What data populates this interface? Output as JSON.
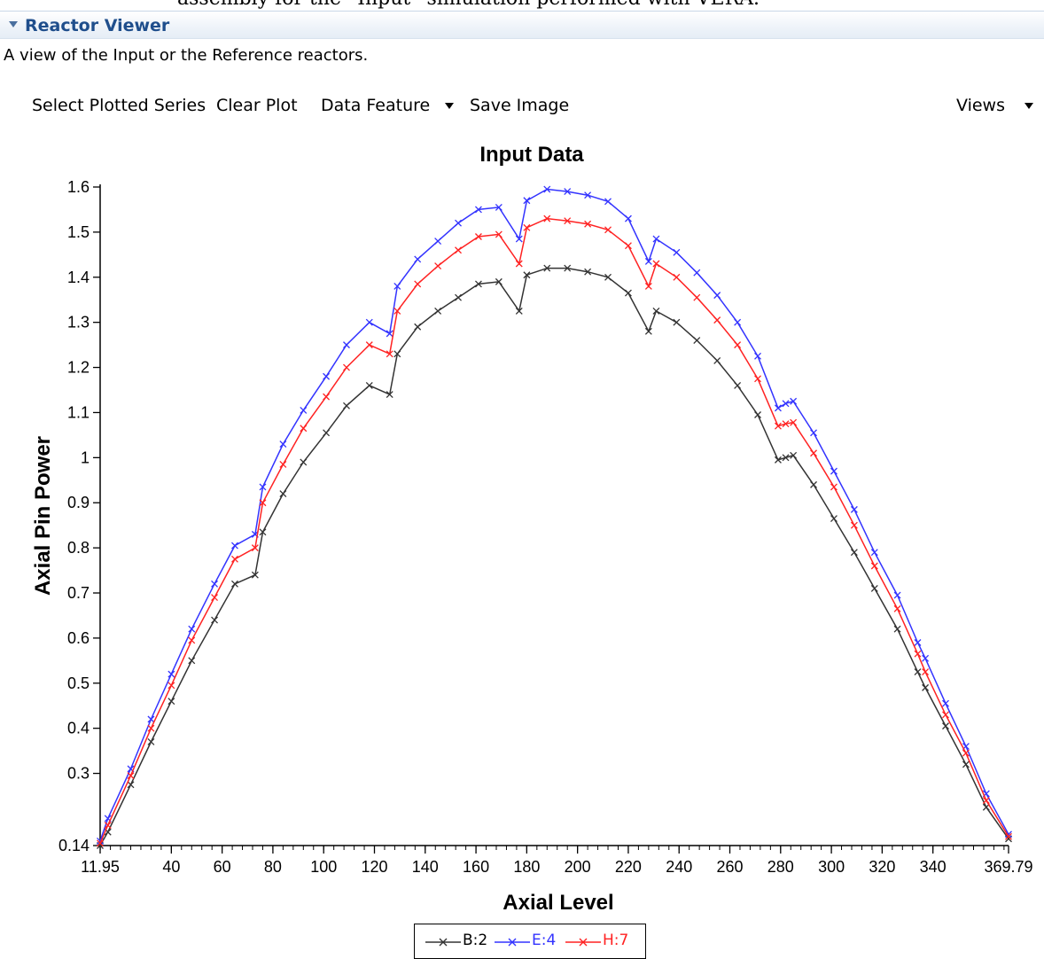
{
  "caption_above": "assembly for the “Input” simulation performed with VERA.",
  "section": {
    "title": "Reactor Viewer",
    "description": "A view of the Input or the Reference reactors."
  },
  "toolbar": {
    "select_series": "Select Plotted Series",
    "clear_plot": "Clear Plot",
    "data_feature": "Data Feature",
    "save_image": "Save Image",
    "views": "Views"
  },
  "colors": {
    "header_text": "#1f4e8c",
    "series_b2": "#333333",
    "series_e4": "#3333ff",
    "series_h7": "#ff2222"
  },
  "chart_data": {
    "type": "line",
    "title": "Input Data",
    "xlabel": "Axial Level",
    "ylabel": "Axial Pin Power",
    "xlim": [
      11.95,
      369.79
    ],
    "ylim": [
      0.14,
      1.6
    ],
    "x_ticks": [
      "11.95",
      "40",
      "60",
      "80",
      "100",
      "120",
      "140",
      "160",
      "180",
      "200",
      "220",
      "240",
      "260",
      "280",
      "300",
      "320",
      "340",
      "369.79"
    ],
    "y_ticks": [
      "0.14",
      "0.3",
      "0.4",
      "0.5",
      "0.6",
      "0.7",
      "0.8",
      "0.9",
      "1",
      "1.1",
      "1.2",
      "1.3",
      "1.4",
      "1.5",
      "1.6"
    ],
    "legend_position": "bottom",
    "x": [
      11.95,
      15,
      24,
      32,
      40,
      48,
      57,
      65,
      73,
      76,
      84,
      92,
      101,
      109,
      118,
      126,
      129,
      137,
      145,
      153,
      161,
      169,
      177,
      180,
      188,
      196,
      204,
      212,
      220,
      228,
      231,
      239,
      247,
      255,
      263,
      271,
      279,
      282,
      285,
      293,
      301,
      309,
      317,
      326,
      334,
      337,
      345,
      353,
      361,
      369.79
    ],
    "series": [
      {
        "name": "B:2",
        "values": [
          0.14,
          0.17,
          0.275,
          0.37,
          0.46,
          0.55,
          0.64,
          0.72,
          0.74,
          0.835,
          0.92,
          0.99,
          1.055,
          1.115,
          1.16,
          1.14,
          1.23,
          1.29,
          1.325,
          1.355,
          1.385,
          1.39,
          1.325,
          1.405,
          1.42,
          1.42,
          1.412,
          1.4,
          1.365,
          1.28,
          1.325,
          1.3,
          1.26,
          1.215,
          1.16,
          1.095,
          0.995,
          1.0,
          1.005,
          0.94,
          0.865,
          0.79,
          0.71,
          0.62,
          0.525,
          0.49,
          0.405,
          0.32,
          0.225,
          0.155
        ]
      },
      {
        "name": "E:4",
        "values": [
          0.15,
          0.2,
          0.31,
          0.42,
          0.52,
          0.62,
          0.72,
          0.805,
          0.83,
          0.935,
          1.03,
          1.105,
          1.18,
          1.25,
          1.3,
          1.275,
          1.38,
          1.44,
          1.48,
          1.52,
          1.55,
          1.555,
          1.485,
          1.57,
          1.595,
          1.59,
          1.582,
          1.568,
          1.53,
          1.435,
          1.485,
          1.455,
          1.41,
          1.36,
          1.3,
          1.225,
          1.11,
          1.12,
          1.125,
          1.055,
          0.97,
          0.885,
          0.79,
          0.695,
          0.59,
          0.555,
          0.455,
          0.36,
          0.255,
          0.165
        ]
      },
      {
        "name": "H:7",
        "values": [
          0.145,
          0.185,
          0.295,
          0.4,
          0.495,
          0.595,
          0.69,
          0.775,
          0.8,
          0.9,
          0.985,
          1.065,
          1.135,
          1.2,
          1.25,
          1.23,
          1.325,
          1.385,
          1.425,
          1.46,
          1.49,
          1.495,
          1.43,
          1.51,
          1.53,
          1.525,
          1.518,
          1.505,
          1.47,
          1.38,
          1.43,
          1.4,
          1.355,
          1.305,
          1.25,
          1.175,
          1.07,
          1.075,
          1.078,
          1.01,
          0.935,
          0.85,
          0.76,
          0.665,
          0.565,
          0.525,
          0.43,
          0.345,
          0.24,
          0.16
        ]
      }
    ]
  }
}
